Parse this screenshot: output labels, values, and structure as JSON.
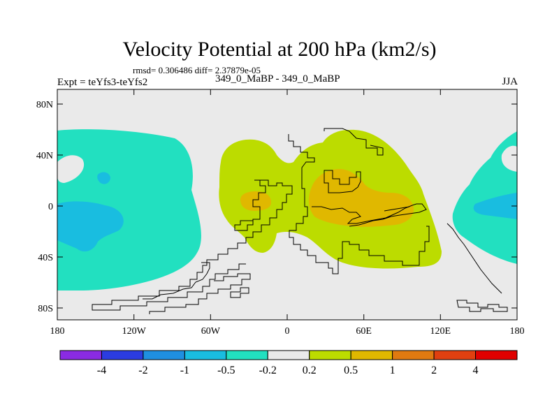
{
  "title": "Velocity Potential at 200 hPa (km2/s)",
  "stats": "rmsd= 0.306486 diff= 2.37879e-05",
  "left_label": "Expt = teYfs3-teYfs2",
  "center_label": "349_0_MaBP - 349_0_MaBP",
  "right_label": "JJA",
  "lat_labels": [
    "80N",
    "40N",
    "0",
    "40S",
    "80S"
  ],
  "lon_labels": [
    "180",
    "120W",
    "60W",
    "0",
    "60E",
    "120E",
    "180"
  ],
  "colorbar": {
    "labels": [
      "-4",
      "-2",
      "-1",
      "-0.5",
      "-0.2",
      "0.2",
      "0.5",
      "1",
      "2",
      "4"
    ],
    "colors": [
      "#8a2be2",
      "#2b3ce0",
      "#1f8fe0",
      "#19bde0",
      "#22e0c0",
      "#eaeaea",
      "#bcdc00",
      "#e0b800",
      "#e07a10",
      "#e04010",
      "#e00000"
    ]
  },
  "palette": {
    "background": "#eaeaea",
    "neg_02_05": "#22e0c0",
    "neg_05_1": "#19bde0",
    "neg_1_2": "#1f8fe0",
    "pos_02_05": "#bcdc00",
    "pos_05_1": "#e0b800",
    "pos_1_2": "#e07a10"
  }
}
